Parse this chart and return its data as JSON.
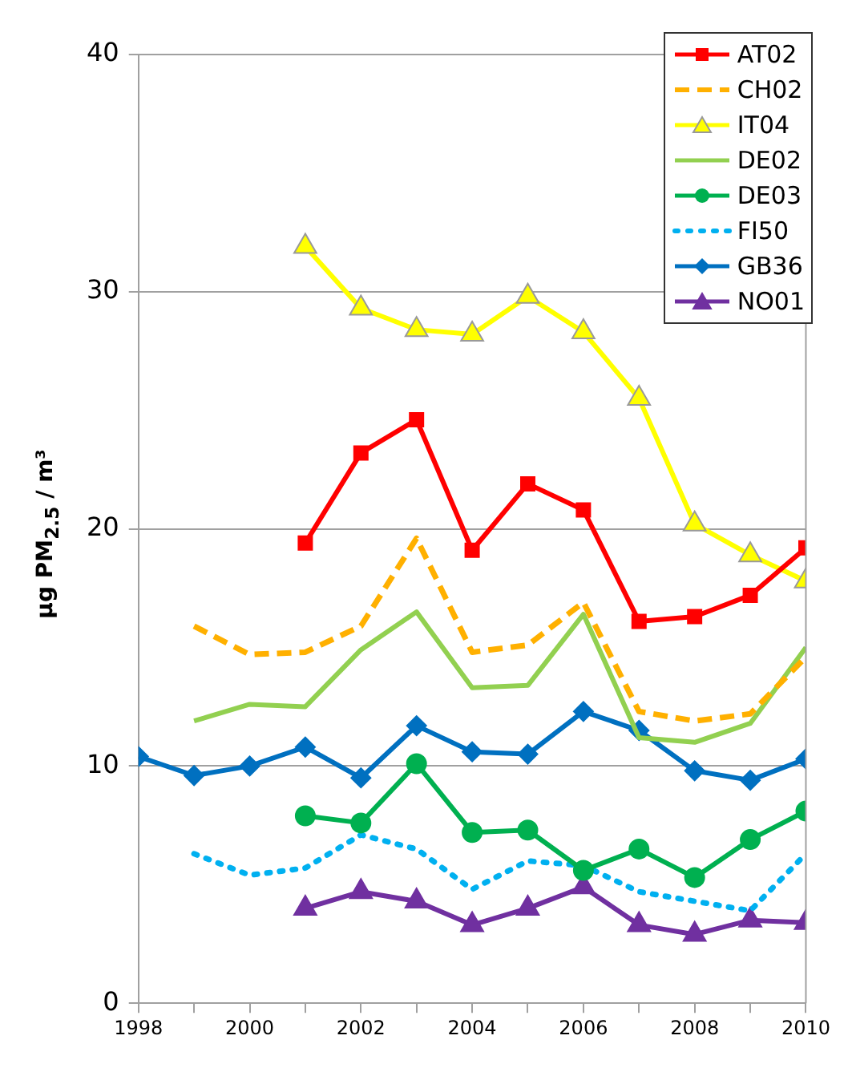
{
  "chart_data": {
    "type": "line",
    "ylabel": "µg PM$_{2.5}$ / m³",
    "x": [
      1998,
      1999,
      2000,
      2001,
      2002,
      2003,
      2004,
      2005,
      2006,
      2007,
      2008,
      2009,
      2010
    ],
    "xlim": [
      1998,
      2010
    ],
    "xticks": [
      1998,
      {
        "value": 1999,
        "label": null
      },
      2000,
      {
        "value": 2001,
        "label": null
      },
      2002,
      {
        "value": 2003,
        "label": null
      },
      2004,
      {
        "value": 2005,
        "label": null
      },
      2006,
      {
        "value": 2007,
        "label": null
      },
      2008,
      {
        "value": 2009,
        "label": null
      },
      2010
    ],
    "ylim": [
      0,
      40
    ],
    "yticks": [
      0,
      10,
      20,
      30,
      40
    ],
    "grid": "y",
    "legend": "top right",
    "series": [
      {
        "name": "AT02",
        "color": "#ff0000",
        "marker": "square",
        "line_style": "solid",
        "values": [
          null,
          null,
          null,
          19.4,
          23.2,
          24.6,
          19.1,
          21.9,
          20.8,
          16.1,
          16.3,
          17.2,
          19.2
        ]
      },
      {
        "name": "CH02",
        "color": "#ffb000",
        "marker": "none",
        "line_style": "dashed",
        "values": [
          null,
          15.9,
          14.7,
          14.8,
          15.9,
          19.6,
          14.8,
          15.1,
          16.9,
          12.3,
          11.9,
          12.2,
          14.6
        ]
      },
      {
        "name": "IT04",
        "color": "#ffff00",
        "marker": "triangle",
        "line_style": "solid",
        "values": [
          null,
          null,
          null,
          31.9,
          29.3,
          28.4,
          28.2,
          29.8,
          28.3,
          25.5,
          20.2,
          18.9,
          17.8
        ]
      },
      {
        "name": "DE02",
        "color": "#92d050",
        "marker": "none",
        "line_style": "solid",
        "values": [
          null,
          11.9,
          12.6,
          12.5,
          14.9,
          16.5,
          13.3,
          13.4,
          16.4,
          11.2,
          11.0,
          11.8,
          15.0
        ]
      },
      {
        "name": "DE03",
        "color": "#00b050",
        "marker": "circle",
        "line_style": "solid",
        "values": [
          null,
          null,
          null,
          7.9,
          7.6,
          10.1,
          7.2,
          7.3,
          5.6,
          6.5,
          5.3,
          6.9,
          8.1
        ]
      },
      {
        "name": "FI50",
        "color": "#00b0f0",
        "marker": "none",
        "line_style": "dotted",
        "values": [
          null,
          6.3,
          5.4,
          5.7,
          7.1,
          6.5,
          4.8,
          6.0,
          5.8,
          4.7,
          4.3,
          3.9,
          6.3
        ]
      },
      {
        "name": "GB36",
        "color": "#0070c0",
        "marker": "diamond",
        "line_style": "solid",
        "values": [
          10.4,
          9.6,
          10.0,
          10.8,
          9.5,
          11.7,
          10.6,
          10.5,
          12.3,
          11.5,
          9.8,
          9.4,
          10.3
        ]
      },
      {
        "name": "NO01",
        "color": "#7030a0",
        "marker": "triangle",
        "line_style": "solid",
        "values": [
          null,
          null,
          null,
          4.0,
          4.7,
          4.3,
          3.3,
          4.0,
          4.9,
          3.3,
          2.9,
          3.5,
          3.4
        ]
      }
    ]
  }
}
